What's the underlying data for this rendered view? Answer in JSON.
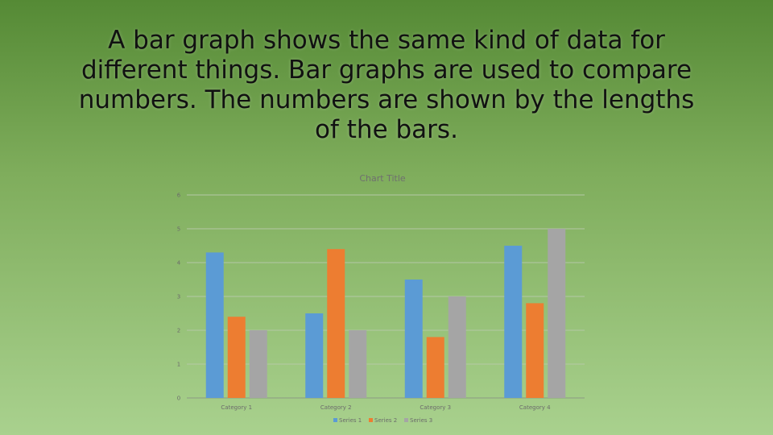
{
  "slide": {
    "lines": [
      "A bar graph shows the same kind of data for",
      "different things.  Bar graphs are used to compare",
      "numbers.  The numbers are shown by the lengths",
      "of the bars."
    ]
  },
  "chart_data": {
    "type": "bar",
    "title": "Chart Title",
    "categories": [
      "Category 1",
      "Category 2",
      "Category 3",
      "Category 4"
    ],
    "series": [
      {
        "name": "Series 1",
        "values": [
          4.3,
          2.5,
          3.5,
          4.5
        ],
        "color": "#5b9bd5"
      },
      {
        "name": "Series 2",
        "values": [
          2.4,
          4.4,
          1.8,
          2.8
        ],
        "color": "#ed7d31"
      },
      {
        "name": "Series 3",
        "values": [
          2,
          2,
          3,
          5
        ],
        "color": "#a5a5a5"
      }
    ],
    "ylim": [
      0,
      6
    ],
    "yticks": [
      0,
      1,
      2,
      3,
      4,
      5,
      6
    ],
    "grid": true,
    "legend": "bottom"
  }
}
